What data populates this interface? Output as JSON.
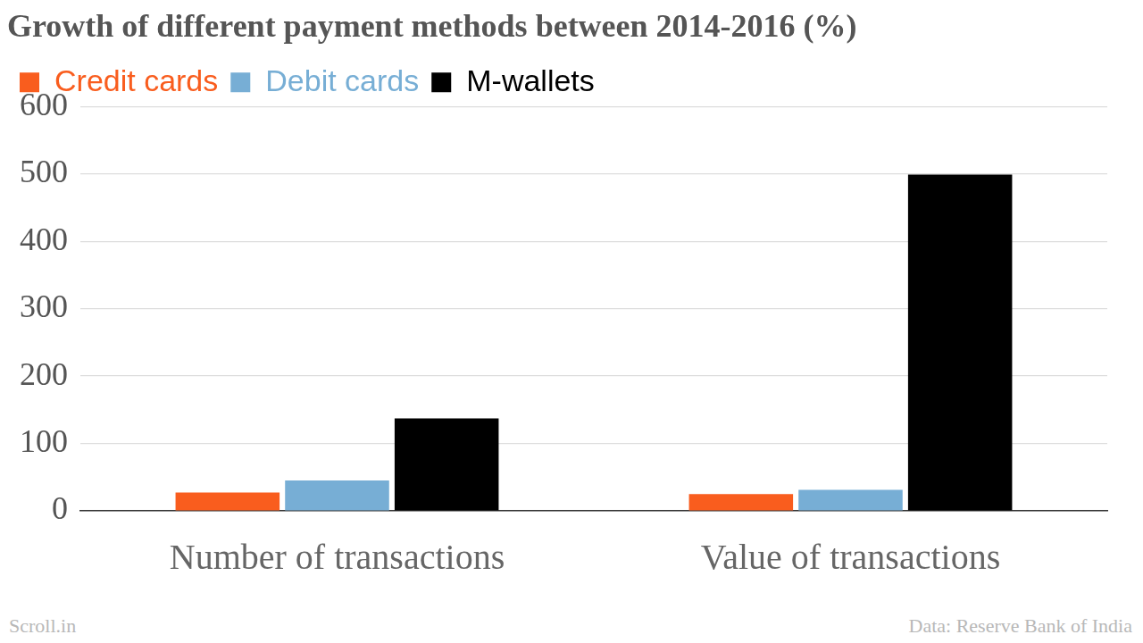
{
  "chart_data": {
    "type": "bar",
    "title": "Growth of different payment methods between 2014-2016 (%)",
    "categories": [
      "Number of transactions",
      "Value of transactions"
    ],
    "series": [
      {
        "name": "Credit cards",
        "color": "#f95d1e",
        "values": [
          27,
          25
        ]
      },
      {
        "name": "Debit cards",
        "color": "#77aed5",
        "values": [
          45,
          31
        ]
      },
      {
        "name": "M-wallets",
        "color": "#000000",
        "values": [
          137,
          499
        ]
      }
    ],
    "ylim": [
      0,
      600
    ],
    "yticks": [
      0,
      100,
      200,
      300,
      400,
      500,
      600
    ],
    "grid": true,
    "legend": "top-left",
    "annotations": [
      "Scroll.in",
      "Data: Reserve Bank of India"
    ]
  }
}
